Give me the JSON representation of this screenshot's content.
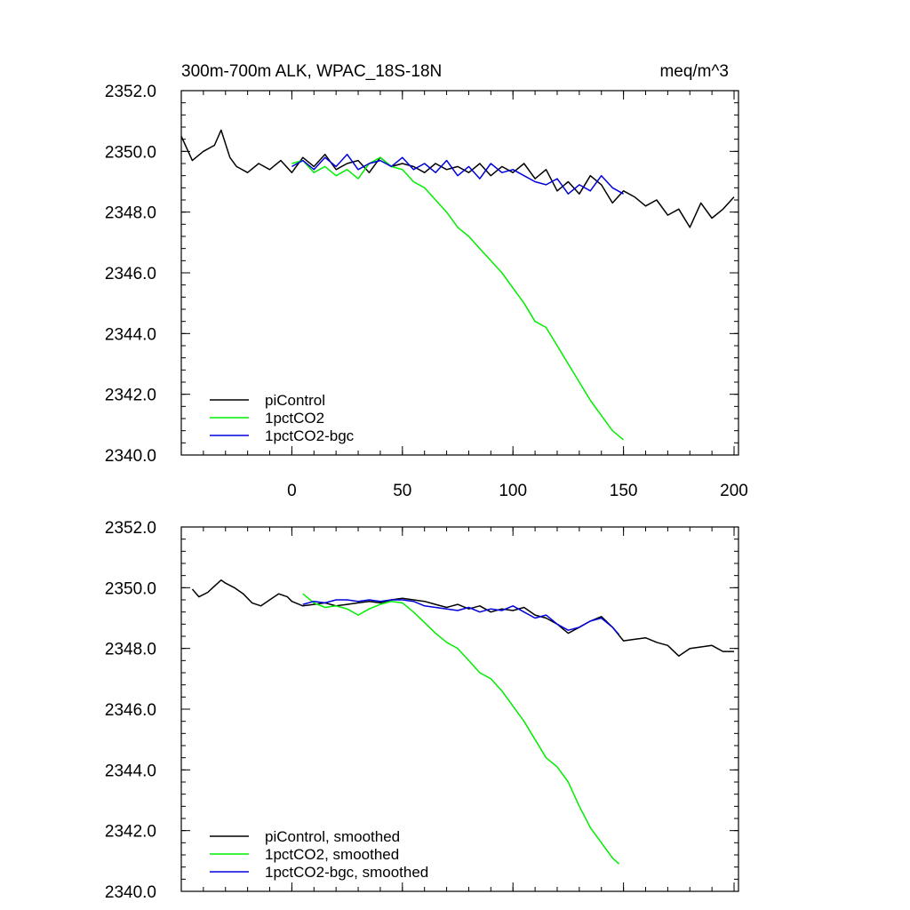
{
  "figure": {
    "title_left": "300m-700m ALK, WPAC_18S-18N",
    "title_right": "meq/m^3"
  },
  "colors": {
    "piControl": "#000000",
    "1pctCO2": "#00ee00",
    "1pctCO2-bgc": "#0000dd"
  },
  "chart_data": [
    {
      "type": "line",
      "title": "300m-700m ALK, WPAC_18S-18N",
      "units_label": "meq/m^3",
      "xlabel": "",
      "ylabel": "",
      "xlim": [
        -50,
        202
      ],
      "ylim": [
        2340.0,
        2352.0
      ],
      "x_ticks": [
        0,
        50,
        100,
        150,
        200
      ],
      "x_tick_labels": [
        "0",
        "50",
        "100",
        "150",
        "200"
      ],
      "y_ticks": [
        2340.0,
        2342.0,
        2344.0,
        2346.0,
        2348.0,
        2350.0,
        2352.0
      ],
      "y_tick_labels": [
        "2340.0",
        "2342.0",
        "2344.0",
        "2346.0",
        "2348.0",
        "2350.0",
        "2352.0"
      ],
      "legend_position": "bottom-left",
      "grid": false,
      "series": [
        {
          "name": "piControl",
          "color": "#000000",
          "x": [
            -50,
            -45,
            -40,
            -35,
            -32,
            -28,
            -25,
            -20,
            -15,
            -10,
            -5,
            0,
            5,
            10,
            15,
            20,
            25,
            30,
            35,
            40,
            45,
            50,
            55,
            60,
            65,
            70,
            75,
            80,
            85,
            90,
            95,
            100,
            105,
            110,
            115,
            120,
            125,
            130,
            135,
            140,
            145,
            150,
            155,
            160,
            165,
            170,
            175,
            180,
            185,
            190,
            195,
            200
          ],
          "y": [
            2350.5,
            2349.7,
            2350.0,
            2350.2,
            2350.7,
            2349.8,
            2349.5,
            2349.3,
            2349.6,
            2349.4,
            2349.7,
            2349.3,
            2349.8,
            2349.5,
            2349.9,
            2349.4,
            2349.6,
            2349.7,
            2349.3,
            2349.8,
            2349.5,
            2349.6,
            2349.5,
            2349.3,
            2349.6,
            2349.4,
            2349.5,
            2349.3,
            2349.6,
            2349.2,
            2349.5,
            2349.3,
            2349.6,
            2349.1,
            2349.4,
            2348.7,
            2349.0,
            2348.6,
            2349.2,
            2348.9,
            2348.3,
            2348.7,
            2348.5,
            2348.2,
            2348.4,
            2347.9,
            2348.1,
            2347.5,
            2348.3,
            2347.8,
            2348.1,
            2348.5
          ]
        },
        {
          "name": "1pctCO2",
          "color": "#00ee00",
          "x": [
            0,
            5,
            10,
            15,
            20,
            25,
            30,
            35,
            40,
            45,
            50,
            55,
            60,
            65,
            70,
            75,
            80,
            85,
            90,
            95,
            100,
            105,
            110,
            115,
            120,
            125,
            130,
            135,
            140,
            145,
            150
          ],
          "y": [
            2349.6,
            2349.7,
            2349.3,
            2349.5,
            2349.2,
            2349.4,
            2349.1,
            2349.6,
            2349.8,
            2349.5,
            2349.4,
            2349.0,
            2348.8,
            2348.4,
            2348.0,
            2347.5,
            2347.2,
            2346.8,
            2346.4,
            2346.0,
            2345.5,
            2345.0,
            2344.4,
            2344.2,
            2343.6,
            2343.0,
            2342.4,
            2341.8,
            2341.3,
            2340.8,
            2340.5
          ]
        },
        {
          "name": "1pctCO2-bgc",
          "color": "#0000dd",
          "x": [
            0,
            5,
            10,
            15,
            20,
            25,
            30,
            35,
            40,
            45,
            50,
            55,
            60,
            65,
            70,
            75,
            80,
            85,
            90,
            95,
            100,
            105,
            110,
            115,
            120,
            125,
            130,
            135,
            140,
            145,
            150
          ],
          "y": [
            2349.5,
            2349.7,
            2349.4,
            2349.8,
            2349.5,
            2349.9,
            2349.4,
            2349.6,
            2349.7,
            2349.5,
            2349.8,
            2349.4,
            2349.6,
            2349.3,
            2349.7,
            2349.2,
            2349.5,
            2349.1,
            2349.6,
            2349.3,
            2349.4,
            2349.2,
            2349.0,
            2348.9,
            2349.1,
            2348.6,
            2348.9,
            2348.7,
            2349.2,
            2348.8,
            2348.6
          ]
        }
      ]
    },
    {
      "type": "line",
      "title": "",
      "xlabel": "",
      "ylabel": "",
      "xlim": [
        -50,
        202
      ],
      "ylim": [
        2340.0,
        2352.0
      ],
      "x_ticks": [
        0,
        50,
        100,
        150,
        200
      ],
      "y_ticks": [
        2340.0,
        2342.0,
        2344.0,
        2346.0,
        2348.0,
        2350.0,
        2352.0
      ],
      "y_tick_labels": [
        "2340.0",
        "2342.0",
        "2344.0",
        "2346.0",
        "2348.0",
        "2350.0",
        "2352.0"
      ],
      "legend_position": "bottom-left",
      "grid": false,
      "series": [
        {
          "name": "piControl, smoothed",
          "color": "#000000",
          "x": [
            -45,
            -42,
            -38,
            -35,
            -32,
            -30,
            -26,
            -22,
            -18,
            -14,
            -10,
            -6,
            -2,
            0,
            5,
            10,
            15,
            20,
            25,
            30,
            35,
            40,
            45,
            50,
            55,
            60,
            65,
            70,
            75,
            80,
            85,
            90,
            95,
            100,
            105,
            110,
            115,
            120,
            125,
            130,
            135,
            140,
            145,
            150,
            155,
            160,
            165,
            170,
            175,
            180,
            185,
            190,
            195,
            200
          ],
          "y": [
            2349.95,
            2349.7,
            2349.85,
            2350.05,
            2350.25,
            2350.15,
            2350.0,
            2349.8,
            2349.5,
            2349.4,
            2349.6,
            2349.8,
            2349.7,
            2349.55,
            2349.4,
            2349.45,
            2349.5,
            2349.4,
            2349.45,
            2349.5,
            2349.55,
            2349.5,
            2349.6,
            2349.65,
            2349.6,
            2349.55,
            2349.45,
            2349.35,
            2349.45,
            2349.3,
            2349.4,
            2349.2,
            2349.3,
            2349.25,
            2349.35,
            2349.1,
            2349.0,
            2348.8,
            2348.5,
            2348.7,
            2348.9,
            2349.05,
            2348.7,
            2348.25,
            2348.3,
            2348.35,
            2348.2,
            2348.1,
            2347.75,
            2348.0,
            2348.05,
            2348.1,
            2347.9,
            2347.9
          ]
        },
        {
          "name": "1pctCO2, smoothed",
          "color": "#00ee00",
          "x": [
            5,
            10,
            15,
            20,
            25,
            30,
            35,
            40,
            45,
            50,
            55,
            60,
            65,
            70,
            75,
            80,
            85,
            90,
            95,
            100,
            105,
            110,
            115,
            120,
            125,
            130,
            135,
            140,
            145,
            148
          ],
          "y": [
            2349.8,
            2349.5,
            2349.35,
            2349.4,
            2349.3,
            2349.1,
            2349.3,
            2349.45,
            2349.55,
            2349.5,
            2349.2,
            2348.85,
            2348.5,
            2348.2,
            2348.0,
            2347.6,
            2347.2,
            2347.0,
            2346.6,
            2346.1,
            2345.6,
            2345.0,
            2344.4,
            2344.1,
            2343.6,
            2342.8,
            2342.1,
            2341.6,
            2341.1,
            2340.9
          ]
        },
        {
          "name": "1pctCO2-bgc, smoothed",
          "color": "#0000dd",
          "x": [
            5,
            10,
            15,
            20,
            25,
            30,
            35,
            40,
            45,
            50,
            55,
            60,
            65,
            70,
            75,
            80,
            85,
            90,
            95,
            100,
            105,
            110,
            115,
            120,
            125,
            130,
            135,
            140,
            145,
            148
          ],
          "y": [
            2349.45,
            2349.55,
            2349.5,
            2349.6,
            2349.6,
            2349.55,
            2349.6,
            2349.55,
            2349.6,
            2349.6,
            2349.55,
            2349.4,
            2349.35,
            2349.3,
            2349.25,
            2349.35,
            2349.2,
            2349.3,
            2349.25,
            2349.4,
            2349.2,
            2349.0,
            2349.1,
            2348.8,
            2348.6,
            2348.7,
            2348.9,
            2349.0,
            2348.7,
            2348.45
          ]
        }
      ]
    }
  ]
}
